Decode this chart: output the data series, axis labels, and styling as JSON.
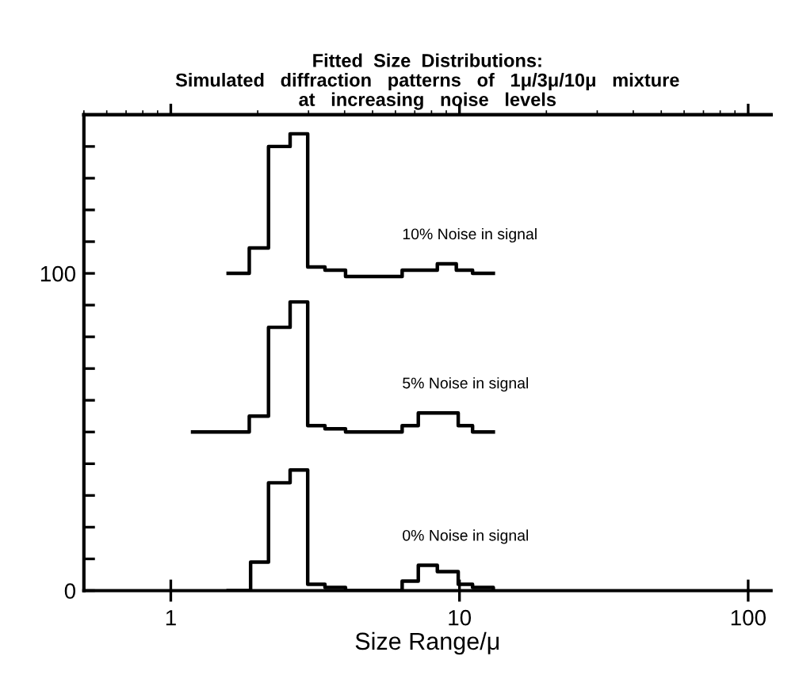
{
  "chart_data": {
    "type": "step",
    "title": "Fitted  Size  Distributions:\nSimulated   diffraction   patterns   of   1μ/3μ/10μ   mixture\nat   increasing   noise   levels",
    "xlabel": "Size Range/μ",
    "log": "x",
    "xlim": [
      0.5,
      120
    ],
    "xticks": [
      1,
      10,
      100
    ],
    "ylim": [
      0,
      150
    ],
    "yticks": [
      0,
      {
        "value": 10,
        "label": null
      },
      {
        "value": 20,
        "label": null
      },
      {
        "value": 30,
        "label": null
      },
      {
        "value": 40,
        "label": null
      },
      {
        "value": 50,
        "label": null
      },
      {
        "value": 60,
        "label": null
      },
      {
        "value": 70,
        "label": null
      },
      {
        "value": 80,
        "label": null
      },
      {
        "value": 90,
        "label": null
      },
      100,
      {
        "value": 110,
        "label": null
      },
      {
        "value": 120,
        "label": null
      },
      {
        "value": 130,
        "label": null
      },
      {
        "value": 140,
        "label": null
      }
    ],
    "grid": false,
    "legend": false,
    "marker": "none",
    "line_style": "solid",
    "series": [
      {
        "name": "10% Noise in signal",
        "color": "#000000",
        "x": [
          1.58,
          1.87,
          2.18,
          2.59,
          2.98,
          3.42,
          4.03,
          6.33,
          8.38,
          9.75,
          11.1,
          13.1
        ],
        "values": [
          100,
          108,
          140,
          144,
          102,
          101,
          99,
          101,
          103,
          101,
          100,
          100
        ]
      },
      {
        "name": "5% Noise in signal",
        "color": "#000000",
        "x": [
          1.19,
          1.87,
          2.18,
          2.59,
          2.98,
          3.42,
          4.03,
          6.33,
          7.2,
          9.9,
          11.1,
          13.1
        ],
        "values": [
          50,
          55,
          83,
          91,
          52,
          51,
          50,
          52,
          56,
          52,
          50,
          50
        ]
      },
      {
        "name": "0% Noise in signal",
        "color": "#000000",
        "x": [
          1.58,
          1.89,
          2.18,
          2.59,
          2.98,
          3.42,
          4.03,
          6.33,
          7.2,
          8.38,
          9.9,
          11.1,
          13.1
        ],
        "values": [
          0,
          9,
          34,
          38,
          2,
          1,
          0,
          3,
          8,
          6,
          2,
          1,
          0
        ]
      }
    ]
  }
}
